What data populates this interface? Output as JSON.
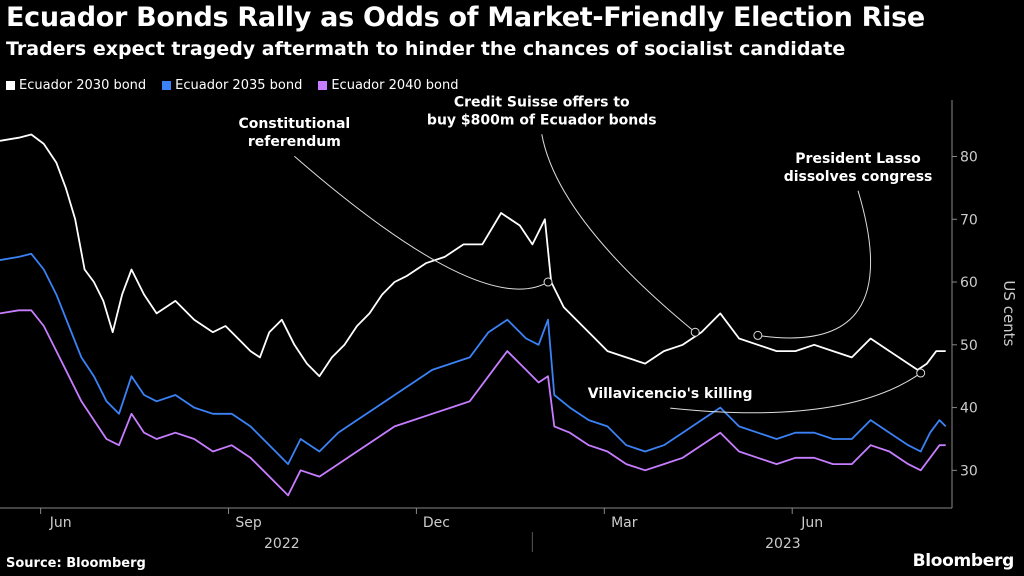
{
  "header": {
    "title": "Ecuador Bonds Rally as Odds of Market-Friendly Election Rise",
    "subtitle": "Traders expect tragedy aftermath to hinder the chances of socialist candidate"
  },
  "footer": {
    "source": "Source: Bloomberg",
    "brand": "Bloomberg"
  },
  "chart_data": {
    "type": "line",
    "ylabel": "US cents",
    "ylim": [
      24,
      89
    ],
    "yticks": [
      30,
      40,
      50,
      60,
      70,
      80
    ],
    "xticks": [
      "Jun",
      "Sep",
      "Dec",
      "Mar",
      "Jun"
    ],
    "xticks_pos": [
      0.5,
      3.5,
      6.5,
      9.5,
      12.5
    ],
    "years": [
      "2022",
      "2023"
    ],
    "years_pos": [
      4.0,
      12.0
    ],
    "year_divider_pos": 8,
    "xlim": [
      -0.5,
      14.7
    ],
    "grid": false,
    "legend_position": "top-left",
    "series": [
      {
        "name": "Ecuador 2030 bond",
        "color": "#ffffff",
        "points": [
          [
            -0.5,
            82.5
          ],
          [
            -0.2,
            83
          ],
          [
            0,
            83.5
          ],
          [
            0.2,
            82
          ],
          [
            0.4,
            79
          ],
          [
            0.55,
            75
          ],
          [
            0.7,
            70
          ],
          [
            0.85,
            62
          ],
          [
            1,
            60
          ],
          [
            1.15,
            57
          ],
          [
            1.3,
            52
          ],
          [
            1.45,
            58
          ],
          [
            1.6,
            62
          ],
          [
            1.8,
            58
          ],
          [
            2,
            55
          ],
          [
            2.3,
            57
          ],
          [
            2.6,
            54
          ],
          [
            2.9,
            52
          ],
          [
            3.1,
            53
          ],
          [
            3.3,
            51
          ],
          [
            3.5,
            49
          ],
          [
            3.65,
            48
          ],
          [
            3.8,
            52
          ],
          [
            4,
            54
          ],
          [
            4.2,
            50
          ],
          [
            4.4,
            47
          ],
          [
            4.6,
            45
          ],
          [
            4.8,
            48
          ],
          [
            5,
            50
          ],
          [
            5.2,
            53
          ],
          [
            5.4,
            55
          ],
          [
            5.6,
            58
          ],
          [
            5.8,
            60
          ],
          [
            6,
            61
          ],
          [
            6.3,
            63
          ],
          [
            6.6,
            64
          ],
          [
            6.9,
            66
          ],
          [
            7.2,
            66
          ],
          [
            7.5,
            71
          ],
          [
            7.8,
            69
          ],
          [
            8.0,
            66
          ],
          [
            8.2,
            70
          ],
          [
            8.3,
            60
          ],
          [
            8.5,
            56
          ],
          [
            8.8,
            53
          ],
          [
            9.0,
            51
          ],
          [
            9.2,
            49
          ],
          [
            9.5,
            48
          ],
          [
            9.8,
            47
          ],
          [
            10.1,
            49
          ],
          [
            10.4,
            50
          ],
          [
            10.7,
            52
          ],
          [
            11.0,
            55
          ],
          [
            11.3,
            51
          ],
          [
            11.6,
            50
          ],
          [
            11.9,
            49
          ],
          [
            12.2,
            49
          ],
          [
            12.5,
            50
          ],
          [
            12.8,
            49
          ],
          [
            13.1,
            48
          ],
          [
            13.4,
            51
          ],
          [
            13.7,
            49
          ],
          [
            14.0,
            47
          ],
          [
            14.15,
            46
          ],
          [
            14.3,
            47
          ],
          [
            14.45,
            49
          ],
          [
            14.6,
            49
          ]
        ]
      },
      {
        "name": "Ecuador 2035 bond",
        "color": "#3b82f6",
        "points": [
          [
            -0.5,
            63.5
          ],
          [
            -0.2,
            64
          ],
          [
            0,
            64.5
          ],
          [
            0.2,
            62
          ],
          [
            0.4,
            58
          ],
          [
            0.6,
            53
          ],
          [
            0.8,
            48
          ],
          [
            1,
            45
          ],
          [
            1.2,
            41
          ],
          [
            1.4,
            39
          ],
          [
            1.6,
            45
          ],
          [
            1.8,
            42
          ],
          [
            2,
            41
          ],
          [
            2.3,
            42
          ],
          [
            2.6,
            40
          ],
          [
            2.9,
            39
          ],
          [
            3.2,
            39
          ],
          [
            3.5,
            37
          ],
          [
            3.7,
            35
          ],
          [
            3.9,
            33
          ],
          [
            4.1,
            31
          ],
          [
            4.3,
            35
          ],
          [
            4.6,
            33
          ],
          [
            4.9,
            36
          ],
          [
            5.2,
            38
          ],
          [
            5.5,
            40
          ],
          [
            5.8,
            42
          ],
          [
            6.1,
            44
          ],
          [
            6.4,
            46
          ],
          [
            6.7,
            47
          ],
          [
            7.0,
            48
          ],
          [
            7.3,
            52
          ],
          [
            7.6,
            54
          ],
          [
            7.9,
            51
          ],
          [
            8.1,
            50
          ],
          [
            8.25,
            54
          ],
          [
            8.35,
            42
          ],
          [
            8.6,
            40
          ],
          [
            8.9,
            38
          ],
          [
            9.2,
            37
          ],
          [
            9.5,
            34
          ],
          [
            9.8,
            33
          ],
          [
            10.1,
            34
          ],
          [
            10.4,
            36
          ],
          [
            10.7,
            38
          ],
          [
            11.0,
            40
          ],
          [
            11.3,
            37
          ],
          [
            11.6,
            36
          ],
          [
            11.9,
            35
          ],
          [
            12.2,
            36
          ],
          [
            12.5,
            36
          ],
          [
            12.8,
            35
          ],
          [
            13.1,
            35
          ],
          [
            13.4,
            38
          ],
          [
            13.7,
            36
          ],
          [
            14.0,
            34
          ],
          [
            14.2,
            33
          ],
          [
            14.35,
            36
          ],
          [
            14.5,
            38
          ],
          [
            14.6,
            37
          ]
        ]
      },
      {
        "name": "Ecuador 2040 bond",
        "color": "#c77dff",
        "points": [
          [
            -0.5,
            55
          ],
          [
            -0.2,
            55.5
          ],
          [
            0,
            55.5
          ],
          [
            0.2,
            53
          ],
          [
            0.4,
            49
          ],
          [
            0.6,
            45
          ],
          [
            0.8,
            41
          ],
          [
            1,
            38
          ],
          [
            1.2,
            35
          ],
          [
            1.4,
            34
          ],
          [
            1.6,
            39
          ],
          [
            1.8,
            36
          ],
          [
            2,
            35
          ],
          [
            2.3,
            36
          ],
          [
            2.6,
            35
          ],
          [
            2.9,
            33
          ],
          [
            3.2,
            34
          ],
          [
            3.5,
            32
          ],
          [
            3.7,
            30
          ],
          [
            3.9,
            28
          ],
          [
            4.1,
            26
          ],
          [
            4.3,
            30
          ],
          [
            4.6,
            29
          ],
          [
            4.9,
            31
          ],
          [
            5.2,
            33
          ],
          [
            5.5,
            35
          ],
          [
            5.8,
            37
          ],
          [
            6.1,
            38
          ],
          [
            6.4,
            39
          ],
          [
            6.7,
            40
          ],
          [
            7.0,
            41
          ],
          [
            7.3,
            45
          ],
          [
            7.6,
            49
          ],
          [
            7.9,
            46
          ],
          [
            8.1,
            44
          ],
          [
            8.25,
            45
          ],
          [
            8.35,
            37
          ],
          [
            8.6,
            36
          ],
          [
            8.9,
            34
          ],
          [
            9.2,
            33
          ],
          [
            9.5,
            31
          ],
          [
            9.8,
            30
          ],
          [
            10.1,
            31
          ],
          [
            10.4,
            32
          ],
          [
            10.7,
            34
          ],
          [
            11.0,
            36
          ],
          [
            11.3,
            33
          ],
          [
            11.6,
            32
          ],
          [
            11.9,
            31
          ],
          [
            12.2,
            32
          ],
          [
            12.5,
            32
          ],
          [
            12.8,
            31
          ],
          [
            13.1,
            31
          ],
          [
            13.4,
            34
          ],
          [
            13.7,
            33
          ],
          [
            14.0,
            31
          ],
          [
            14.2,
            30
          ],
          [
            14.35,
            32
          ],
          [
            14.5,
            34
          ],
          [
            14.6,
            34
          ]
        ]
      }
    ],
    "annotations": [
      {
        "text": [
          "Constitutional",
          "referendum"
        ],
        "label_at": [
          4.2,
          84.5
        ],
        "target": [
          8.25,
          60
        ],
        "ctrl": [
          7.2,
          54
        ]
      },
      {
        "text": [
          "Credit Suisse offers to",
          "buy $800m of Ecuador bonds"
        ],
        "label_at": [
          8.15,
          88
        ],
        "target": [
          10.6,
          52
        ],
        "ctrl": [
          8.4,
          70
        ]
      },
      {
        "text": [
          "President Lasso",
          "dissolves congress"
        ],
        "label_at": [
          13.2,
          79
        ],
        "target": [
          11.6,
          51.5
        ],
        "ctrl": [
          14.0,
          48
        ]
      },
      {
        "text": [
          "Villavicencio's killing"
        ],
        "label_at": [
          10.2,
          41.5
        ],
        "target": [
          14.2,
          45.5
        ],
        "ctrl": [
          13.0,
          37
        ]
      }
    ]
  }
}
